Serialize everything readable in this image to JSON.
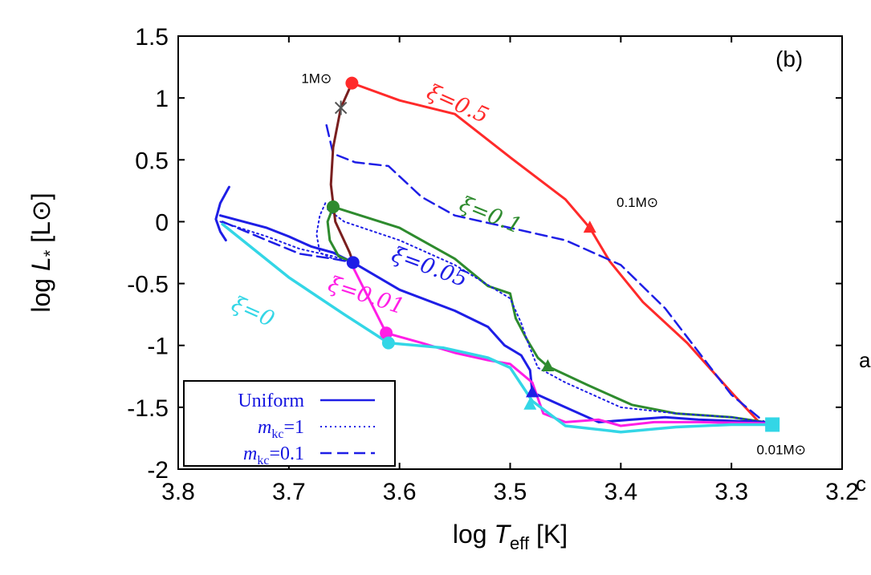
{
  "chart_data": {
    "type": "line",
    "title": "",
    "panel_label": "(b)",
    "xlabel": "log T_eff [K]",
    "ylabel": "log L* [L⊙]",
    "xlim": [
      3.8,
      3.2
    ],
    "ylim": [
      -2,
      1.5
    ],
    "x_reversed": true,
    "grid": false,
    "x_ticks": [
      "3.8",
      "3.7",
      "3.6",
      "3.5",
      "3.4",
      "3.3",
      "3.2"
    ],
    "y_ticks": [
      "1.5",
      "1",
      "0.5",
      "0",
      "-0.5",
      "-1",
      "-1.5",
      "-2"
    ],
    "annotations": [
      {
        "text": "1M⊙",
        "x": 3.675,
        "y": 1.12
      },
      {
        "text": "0.1M⊙",
        "x": 3.385,
        "y": 0.12
      },
      {
        "text": "0.01M⊙",
        "x": 3.255,
        "y": -1.88
      }
    ],
    "series_labels": [
      {
        "text": "ξ=0.5",
        "x": 3.55,
        "y": 0.9,
        "color": "#ff2a2a"
      },
      {
        "text": "ξ=0.1",
        "x": 3.52,
        "y": 0.0,
        "color": "#2e8b2e"
      },
      {
        "text": "ξ=0.05",
        "x": 3.575,
        "y": -0.42,
        "color": "#1e1ee6"
      },
      {
        "text": "ξ=0.01",
        "x": 3.632,
        "y": -0.65,
        "color": "#ff1ee6"
      },
      {
        "text": "ξ=0",
        "x": 3.735,
        "y": -0.78,
        "color": "#33d6e6"
      }
    ],
    "legend": {
      "position": "bottom-left",
      "entries": [
        {
          "label": "Uniform",
          "style": "solid"
        },
        {
          "label_italic": "m",
          "label_sub": "kc",
          "label_rest": "=1",
          "style": "dotted"
        },
        {
          "label_italic": "m",
          "label_sub": "kc",
          "label_rest": "=0.1",
          "style": "dashed"
        }
      ]
    },
    "series": [
      {
        "key": "xi05",
        "color": "#ff2a2a",
        "style": "solid",
        "width": 3,
        "points": [
          [
            3.643,
            1.12
          ],
          [
            3.6,
            0.98
          ],
          [
            3.55,
            0.87
          ],
          [
            3.5,
            0.52
          ],
          [
            3.45,
            0.18
          ],
          [
            3.428,
            -0.05
          ],
          [
            3.41,
            -0.32
          ],
          [
            3.38,
            -0.65
          ],
          [
            3.34,
            -0.98
          ],
          [
            3.3,
            -1.38
          ],
          [
            3.275,
            -1.62
          ]
        ]
      },
      {
        "key": "xi05_mkc01",
        "color": "#1e1ee6",
        "style": "dashed",
        "width": 2.5,
        "points": [
          [
            3.666,
            0.78
          ],
          [
            3.66,
            0.55
          ],
          [
            3.64,
            0.48
          ],
          [
            3.61,
            0.45
          ],
          [
            3.58,
            0.2
          ],
          [
            3.55,
            0.05
          ],
          [
            3.5,
            -0.05
          ],
          [
            3.45,
            -0.15
          ],
          [
            3.4,
            -0.35
          ],
          [
            3.36,
            -0.7
          ],
          [
            3.33,
            -1.05
          ],
          [
            3.3,
            -1.4
          ],
          [
            3.27,
            -1.62
          ]
        ]
      },
      {
        "key": "xi01",
        "color": "#2e8b2e",
        "style": "solid",
        "width": 3,
        "points": [
          [
            3.66,
            0.12
          ],
          [
            3.6,
            -0.05
          ],
          [
            3.55,
            -0.3
          ],
          [
            3.52,
            -0.52
          ],
          [
            3.5,
            -0.58
          ],
          [
            3.495,
            -0.78
          ],
          [
            3.485,
            -0.95
          ],
          [
            3.475,
            -1.1
          ],
          [
            3.466,
            -1.17
          ],
          [
            3.43,
            -1.32
          ],
          [
            3.39,
            -1.48
          ],
          [
            3.35,
            -1.55
          ],
          [
            3.3,
            -1.58
          ],
          [
            3.27,
            -1.62
          ]
        ]
      },
      {
        "key": "xi01_mkc1",
        "color": "#1e1ee6",
        "style": "dotted",
        "width": 2,
        "points": [
          [
            3.665,
            0.1
          ],
          [
            3.65,
            0.0
          ],
          [
            3.6,
            -0.15
          ],
          [
            3.55,
            -0.35
          ],
          [
            3.5,
            -0.62
          ],
          [
            3.49,
            -0.82
          ],
          [
            3.483,
            -1.0
          ],
          [
            3.475,
            -1.18
          ],
          [
            3.45,
            -1.3
          ],
          [
            3.4,
            -1.5
          ],
          [
            3.35,
            -1.55
          ],
          [
            3.3,
            -1.58
          ],
          [
            3.27,
            -1.62
          ]
        ]
      },
      {
        "key": "xi005",
        "color": "#1e1ee6",
        "style": "solid",
        "width": 3,
        "points": [
          [
            3.642,
            -0.33
          ],
          [
            3.6,
            -0.55
          ],
          [
            3.55,
            -0.72
          ],
          [
            3.52,
            -0.85
          ],
          [
            3.505,
            -1.0
          ],
          [
            3.49,
            -1.08
          ],
          [
            3.482,
            -1.2
          ],
          [
            3.48,
            -1.38
          ],
          [
            3.45,
            -1.5
          ],
          [
            3.42,
            -1.62
          ],
          [
            3.39,
            -1.6
          ],
          [
            3.36,
            -1.58
          ],
          [
            3.33,
            -1.6
          ],
          [
            3.27,
            -1.62
          ]
        ]
      },
      {
        "key": "xi001",
        "color": "#ff1ee6",
        "style": "solid",
        "width": 3,
        "points": [
          [
            3.643,
            -0.35
          ],
          [
            3.612,
            -0.9
          ],
          [
            3.58,
            -0.98
          ],
          [
            3.55,
            -1.06
          ],
          [
            3.52,
            -1.12
          ],
          [
            3.5,
            -1.15
          ],
          [
            3.48,
            -1.3
          ],
          [
            3.47,
            -1.55
          ],
          [
            3.45,
            -1.62
          ],
          [
            3.42,
            -1.6
          ],
          [
            3.4,
            -1.65
          ],
          [
            3.37,
            -1.62
          ],
          [
            3.33,
            -1.62
          ],
          [
            3.27,
            -1.63
          ]
        ]
      },
      {
        "key": "xi0",
        "color": "#33d6e6",
        "style": "solid",
        "width": 3.5,
        "points": [
          [
            3.76,
            -0.02
          ],
          [
            3.7,
            -0.45
          ],
          [
            3.65,
            -0.75
          ],
          [
            3.61,
            -0.98
          ],
          [
            3.56,
            -1.02
          ],
          [
            3.52,
            -1.1
          ],
          [
            3.5,
            -1.18
          ],
          [
            3.48,
            -1.45
          ],
          [
            3.45,
            -1.65
          ],
          [
            3.4,
            -1.7
          ],
          [
            3.35,
            -1.66
          ],
          [
            3.3,
            -1.64
          ],
          [
            3.263,
            -1.64
          ]
        ]
      },
      {
        "key": "early_main",
        "color": "#1e1ee6",
        "style": "solid",
        "width": 3,
        "points": [
          [
            3.762,
            0.05
          ],
          [
            3.72,
            -0.05
          ],
          [
            3.7,
            -0.12
          ],
          [
            3.68,
            -0.2
          ],
          [
            3.66,
            -0.25
          ],
          [
            3.642,
            -0.33
          ]
        ]
      },
      {
        "key": "early_dashed",
        "color": "#1e1ee6",
        "style": "dashed",
        "width": 2.5,
        "points": [
          [
            3.76,
            0.0
          ],
          [
            3.72,
            -0.15
          ],
          [
            3.69,
            -0.26
          ],
          [
            3.66,
            -0.3
          ],
          [
            3.642,
            -0.33
          ]
        ]
      },
      {
        "key": "early_dotted",
        "color": "#1e1ee6",
        "style": "dotted",
        "width": 2,
        "points": [
          [
            3.762,
            0.0
          ],
          [
            3.72,
            -0.12
          ],
          [
            3.69,
            -0.22
          ],
          [
            3.66,
            -0.28
          ],
          [
            3.642,
            -0.33
          ]
        ]
      },
      {
        "key": "early_blob",
        "color": "#1e1ee6",
        "style": "solid",
        "width": 3,
        "points": [
          [
            3.754,
            0.28
          ],
          [
            3.762,
            0.15
          ],
          [
            3.766,
            0.02
          ],
          [
            3.762,
            -0.08
          ],
          [
            3.757,
            -0.15
          ]
        ]
      },
      {
        "key": "vertical_track",
        "color": "#7a1f1f",
        "style": "solid",
        "width": 3,
        "points": [
          [
            3.643,
            1.12
          ],
          [
            3.653,
            0.92
          ],
          [
            3.66,
            0.6
          ],
          [
            3.662,
            0.3
          ],
          [
            3.658,
            0.0
          ],
          [
            3.645,
            -0.25
          ],
          [
            3.642,
            -0.33
          ]
        ]
      },
      {
        "key": "xi01_loop",
        "color": "#2e8b2e",
        "style": "solid",
        "width": 3,
        "points": [
          [
            3.66,
            0.12
          ],
          [
            3.665,
            0.0
          ],
          [
            3.663,
            -0.15
          ],
          [
            3.655,
            -0.28
          ],
          [
            3.642,
            -0.33
          ]
        ]
      },
      {
        "key": "left_blue_loop",
        "color": "#1e1ee6",
        "style": "dotted",
        "width": 2,
        "points": [
          [
            3.667,
            0.15
          ],
          [
            3.672,
            0.05
          ],
          [
            3.675,
            -0.1
          ],
          [
            3.672,
            -0.25
          ],
          [
            3.66,
            -0.3
          ],
          [
            3.64,
            -0.33
          ]
        ]
      }
    ],
    "markers": [
      {
        "shape": "circle",
        "x": 3.643,
        "y": 1.12,
        "color": "#ff2a2a"
      },
      {
        "shape": "cross",
        "x": 3.653,
        "y": 0.92,
        "color": "#555555"
      },
      {
        "shape": "triangle",
        "x": 3.428,
        "y": -0.05,
        "color": "#ff2a2a"
      },
      {
        "shape": "circle",
        "x": 3.66,
        "y": 0.12,
        "color": "#2e8b2e"
      },
      {
        "shape": "circle",
        "x": 3.642,
        "y": -0.33,
        "color": "#1e1ee6"
      },
      {
        "shape": "triangle",
        "x": 3.466,
        "y": -1.17,
        "color": "#2e8b2e"
      },
      {
        "shape": "circle",
        "x": 3.612,
        "y": -0.9,
        "color": "#ff1ee6"
      },
      {
        "shape": "circle",
        "x": 3.61,
        "y": -0.98,
        "color": "#33d6e6"
      },
      {
        "shape": "triangle",
        "x": 3.48,
        "y": -1.38,
        "color": "#1e1ee6"
      },
      {
        "shape": "triangle",
        "x": 3.482,
        "y": -1.48,
        "color": "#33d6e6"
      },
      {
        "shape": "square",
        "x": 3.263,
        "y": -1.64,
        "color": "#33d6e6"
      }
    ]
  },
  "edge_text": [
    {
      "text": "a"
    },
    {
      "text": "c"
    }
  ]
}
